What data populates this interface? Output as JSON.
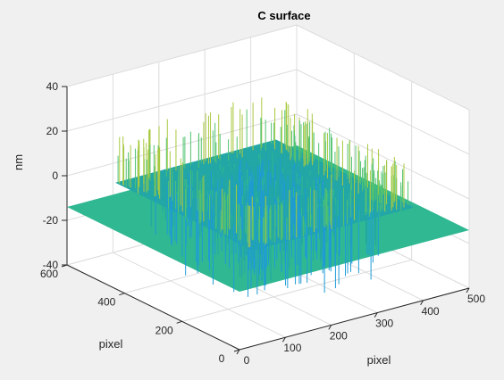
{
  "chart_data": {
    "type": "surface",
    "title": "C surface",
    "xlabel": "pixel",
    "ylabel": "pixel",
    "zlabel": "nm",
    "xlim": [
      0,
      500
    ],
    "ylim": [
      0,
      600
    ],
    "zlim": [
      -40,
      40
    ],
    "x_ticks": [
      0,
      100,
      200,
      300,
      400,
      500
    ],
    "y_ticks": [
      0,
      200,
      400,
      600
    ],
    "z_ticks": [
      -40,
      -20,
      0,
      20,
      40
    ],
    "grid": true,
    "colormap": [
      "#1e9bd7",
      "#22a6a6",
      "#2fb892",
      "#52c270",
      "#a9c940",
      "#f4d529"
    ],
    "surface": {
      "flat_level": -14,
      "data_region_x": [
        80,
        430
      ],
      "data_region_y": [
        80,
        560
      ],
      "noise_range": [
        -38,
        18
      ],
      "central_plateau_level": -5
    }
  }
}
